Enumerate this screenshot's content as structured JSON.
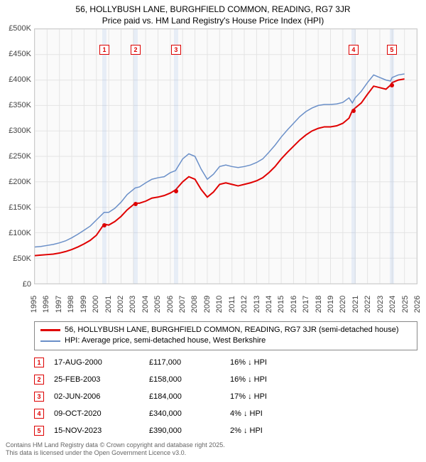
{
  "title_line1": "56, HOLLYBUSH LANE, BURGHFIELD COMMON, READING, RG7 3JR",
  "title_line2": "Price paid vs. HM Land Registry's House Price Index (HPI)",
  "chart": {
    "type": "line",
    "background_color": "#fafafa",
    "border_color": "#cccccc",
    "grid_color": "#e4e4e4",
    "xlim": [
      1995,
      2026
    ],
    "ylim": [
      0,
      500000
    ],
    "ytick_step": 50000,
    "ytick_format": "£K",
    "yticks": [
      "£0",
      "£50K",
      "£100K",
      "£150K",
      "£200K",
      "£250K",
      "£300K",
      "£350K",
      "£400K",
      "£450K",
      "£500K"
    ],
    "xticks": [
      1995,
      1996,
      1997,
      1998,
      1999,
      2000,
      2001,
      2002,
      2003,
      2004,
      2005,
      2006,
      2007,
      2008,
      2009,
      2010,
      2011,
      2012,
      2013,
      2014,
      2015,
      2016,
      2017,
      2018,
      2019,
      2020,
      2021,
      2022,
      2023,
      2024,
      2025,
      2026
    ],
    "label_fontsize": 11,
    "title_fontsize": 12,
    "series": [
      {
        "name": "property",
        "label": "56, HOLLYBUSH LANE, BURGHFIELD COMMON, READING, RG7 3JR (semi-detached house)",
        "color": "#e00000",
        "line_width": 2,
        "data": [
          [
            1995.0,
            55000
          ],
          [
            1995.5,
            56000
          ],
          [
            1996.0,
            57000
          ],
          [
            1996.5,
            58000
          ],
          [
            1997.0,
            60000
          ],
          [
            1997.5,
            63000
          ],
          [
            1998.0,
            67000
          ],
          [
            1998.5,
            72000
          ],
          [
            1999.0,
            78000
          ],
          [
            1999.5,
            85000
          ],
          [
            2000.0,
            95000
          ],
          [
            2000.63,
            117000
          ],
          [
            2001.0,
            115000
          ],
          [
            2001.5,
            122000
          ],
          [
            2002.0,
            132000
          ],
          [
            2002.5,
            145000
          ],
          [
            2003.0,
            155000
          ],
          [
            2003.15,
            158000
          ],
          [
            2003.5,
            158000
          ],
          [
            2004.0,
            162000
          ],
          [
            2004.5,
            168000
          ],
          [
            2005.0,
            170000
          ],
          [
            2005.5,
            173000
          ],
          [
            2006.0,
            178000
          ],
          [
            2006.42,
            184000
          ],
          [
            2007.0,
            200000
          ],
          [
            2007.5,
            210000
          ],
          [
            2008.0,
            205000
          ],
          [
            2008.5,
            185000
          ],
          [
            2009.0,
            170000
          ],
          [
            2009.5,
            180000
          ],
          [
            2010.0,
            195000
          ],
          [
            2010.5,
            198000
          ],
          [
            2011.0,
            195000
          ],
          [
            2011.5,
            192000
          ],
          [
            2012.0,
            195000
          ],
          [
            2012.5,
            198000
          ],
          [
            2013.0,
            202000
          ],
          [
            2013.5,
            208000
          ],
          [
            2014.0,
            218000
          ],
          [
            2014.5,
            230000
          ],
          [
            2015.0,
            245000
          ],
          [
            2015.5,
            258000
          ],
          [
            2016.0,
            270000
          ],
          [
            2016.5,
            282000
          ],
          [
            2017.0,
            292000
          ],
          [
            2017.5,
            300000
          ],
          [
            2018.0,
            305000
          ],
          [
            2018.5,
            308000
          ],
          [
            2019.0,
            308000
          ],
          [
            2019.5,
            310000
          ],
          [
            2020.0,
            315000
          ],
          [
            2020.5,
            325000
          ],
          [
            2020.77,
            340000
          ],
          [
            2021.0,
            345000
          ],
          [
            2021.5,
            355000
          ],
          [
            2022.0,
            372000
          ],
          [
            2022.5,
            388000
          ],
          [
            2023.0,
            385000
          ],
          [
            2023.5,
            382000
          ],
          [
            2023.87,
            390000
          ],
          [
            2024.0,
            395000
          ],
          [
            2024.5,
            400000
          ],
          [
            2025.0,
            402000
          ]
        ]
      },
      {
        "name": "hpi",
        "label": "HPI: Average price, semi-detached house, West Berkshire",
        "color": "#6a8fc8",
        "line_width": 1.5,
        "data": [
          [
            1995.0,
            72000
          ],
          [
            1995.5,
            73000
          ],
          [
            1996.0,
            75000
          ],
          [
            1996.5,
            77000
          ],
          [
            1997.0,
            80000
          ],
          [
            1997.5,
            84000
          ],
          [
            1998.0,
            90000
          ],
          [
            1998.5,
            97000
          ],
          [
            1999.0,
            105000
          ],
          [
            1999.5,
            113000
          ],
          [
            2000.0,
            125000
          ],
          [
            2000.63,
            140000
          ],
          [
            2001.0,
            140000
          ],
          [
            2001.5,
            148000
          ],
          [
            2002.0,
            160000
          ],
          [
            2002.5,
            175000
          ],
          [
            2003.0,
            185000
          ],
          [
            2003.15,
            188000
          ],
          [
            2003.5,
            190000
          ],
          [
            2004.0,
            198000
          ],
          [
            2004.5,
            205000
          ],
          [
            2005.0,
            208000
          ],
          [
            2005.5,
            210000
          ],
          [
            2006.0,
            218000
          ],
          [
            2006.42,
            222000
          ],
          [
            2007.0,
            245000
          ],
          [
            2007.5,
            255000
          ],
          [
            2008.0,
            250000
          ],
          [
            2008.5,
            225000
          ],
          [
            2009.0,
            205000
          ],
          [
            2009.5,
            215000
          ],
          [
            2010.0,
            230000
          ],
          [
            2010.5,
            233000
          ],
          [
            2011.0,
            230000
          ],
          [
            2011.5,
            228000
          ],
          [
            2012.0,
            230000
          ],
          [
            2012.5,
            233000
          ],
          [
            2013.0,
            238000
          ],
          [
            2013.5,
            245000
          ],
          [
            2014.0,
            258000
          ],
          [
            2014.5,
            272000
          ],
          [
            2015.0,
            288000
          ],
          [
            2015.5,
            302000
          ],
          [
            2016.0,
            315000
          ],
          [
            2016.5,
            328000
          ],
          [
            2017.0,
            338000
          ],
          [
            2017.5,
            345000
          ],
          [
            2018.0,
            350000
          ],
          [
            2018.5,
            352000
          ],
          [
            2019.0,
            352000
          ],
          [
            2019.5,
            353000
          ],
          [
            2020.0,
            356000
          ],
          [
            2020.5,
            365000
          ],
          [
            2020.77,
            355000
          ],
          [
            2021.0,
            365000
          ],
          [
            2021.5,
            378000
          ],
          [
            2022.0,
            395000
          ],
          [
            2022.5,
            410000
          ],
          [
            2023.0,
            405000
          ],
          [
            2023.5,
            400000
          ],
          [
            2023.87,
            398000
          ],
          [
            2024.0,
            405000
          ],
          [
            2024.5,
            410000
          ],
          [
            2025.0,
            412000
          ]
        ]
      }
    ],
    "sales": [
      {
        "n": "1",
        "x": 2000.63,
        "date": "17-AUG-2000",
        "price": "£117,000",
        "diff": "16% ↓ HPI",
        "price_num": 117000
      },
      {
        "n": "2",
        "x": 2003.15,
        "date": "25-FEB-2003",
        "price": "£158,000",
        "diff": "16% ↓ HPI",
        "price_num": 158000
      },
      {
        "n": "3",
        "x": 2006.42,
        "date": "02-JUN-2006",
        "price": "£184,000",
        "diff": "17% ↓ HPI",
        "price_num": 184000
      },
      {
        "n": "4",
        "x": 2020.77,
        "date": "09-OCT-2020",
        "price": "£340,000",
        "diff": "4% ↓ HPI",
        "price_num": 340000
      },
      {
        "n": "5",
        "x": 2023.87,
        "date": "15-NOV-2023",
        "price": "£390,000",
        "diff": "2% ↓ HPI",
        "price_num": 390000
      }
    ],
    "marker_y_on_plot": 460000,
    "sale_band_width_years": 0.35,
    "sale_band_color": "rgba(100,150,220,0.12)"
  },
  "legend": {
    "border_color": "#888888"
  },
  "footer_line1": "Contains HM Land Registry data © Crown copyright and database right 2025.",
  "footer_line2": "This data is licensed under the Open Government Licence v3.0."
}
